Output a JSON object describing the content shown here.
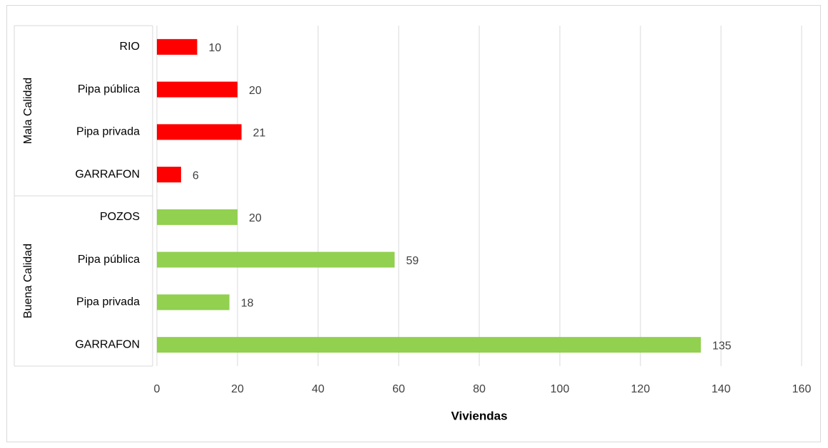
{
  "chart_data": {
    "type": "bar",
    "orientation": "horizontal",
    "groups": [
      {
        "name": "Mala Calidad",
        "color": "#ff0000",
        "categories": [
          "RIO",
          "Pipa pública",
          "Pipa privada",
          "GARRAFON"
        ],
        "values": [
          10,
          20,
          21,
          6
        ]
      },
      {
        "name": "Buena Calidad",
        "color": "#92d050",
        "categories": [
          "POZOS",
          "Pipa pública",
          "Pipa privada",
          "GARRAFON"
        ],
        "values": [
          20,
          59,
          18,
          135
        ]
      }
    ],
    "xlabel": "Viviendas",
    "xlim": [
      0,
      160
    ],
    "xticks": [
      0,
      20,
      40,
      60,
      80,
      100,
      120,
      140,
      160
    ],
    "grid": true
  }
}
